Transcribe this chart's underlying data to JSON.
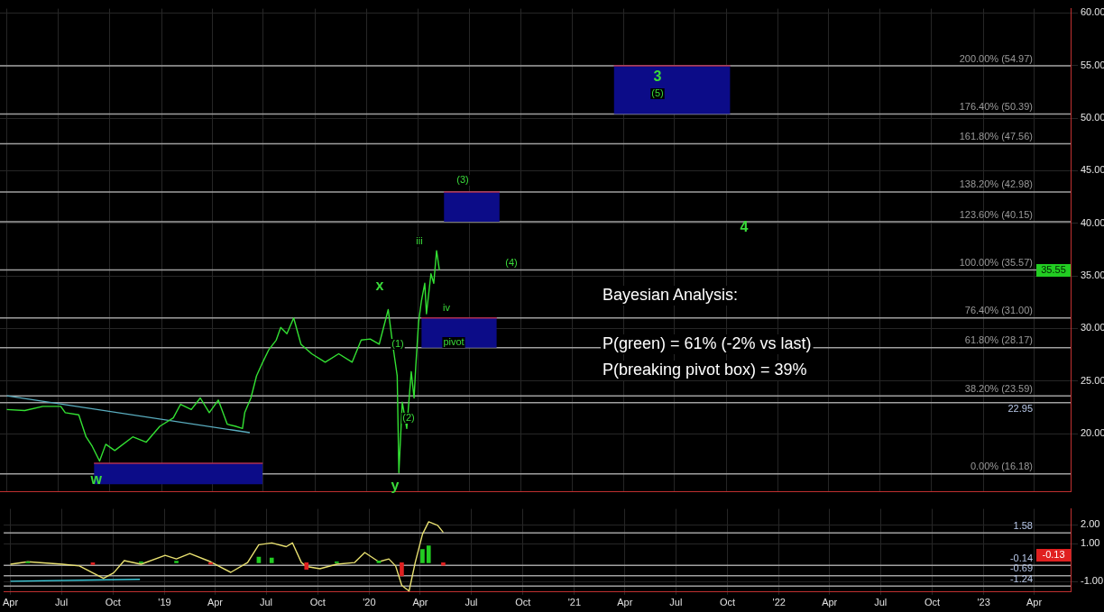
{
  "chart_data": [
    {
      "type": "line",
      "xlim": [
        "2018-03-20",
        "2023-06-05"
      ],
      "xticks": [
        {
          "value": "2018-04-01",
          "label": null
        },
        {
          "value": "2018-07-01",
          "label": null
        },
        {
          "value": "2018-10-01",
          "label": null
        },
        {
          "value": "2019-01-01",
          "label": null
        },
        {
          "value": "2019-04-01",
          "label": null
        },
        {
          "value": "2019-07-01",
          "label": null
        },
        {
          "value": "2019-10-01",
          "label": null
        },
        {
          "value": "2020-01-01",
          "label": null
        },
        {
          "value": "2020-04-01",
          "label": null
        },
        {
          "value": "2020-07-01",
          "label": null
        },
        {
          "value": "2020-10-01",
          "label": null
        },
        {
          "value": "2021-01-01",
          "label": null
        },
        {
          "value": "2021-04-01",
          "label": null
        },
        {
          "value": "2021-07-01",
          "label": null
        },
        {
          "value": "2021-10-01",
          "label": null
        },
        {
          "value": "2022-01-01",
          "label": null
        },
        {
          "value": "2022-04-01",
          "label": null
        },
        {
          "value": "2022-07-01",
          "label": null
        },
        {
          "value": "2022-10-01",
          "label": null
        },
        {
          "value": "2023-01-01",
          "label": null
        },
        {
          "value": "2023-04-01",
          "label": null
        }
      ],
      "ylim": [
        14.5,
        60.4
      ],
      "yticks": [
        {
          "value": 20,
          "label": "20.00"
        },
        {
          "value": 25,
          "label": "25.00"
        },
        {
          "value": 30,
          "label": "30.00"
        },
        {
          "value": 35,
          "label": "35.00"
        },
        {
          "value": 40,
          "label": "40.00"
        },
        {
          "value": 45,
          "label": "45.00"
        },
        {
          "value": 50,
          "label": "50.00"
        },
        {
          "value": 55,
          "label": "55.00"
        },
        {
          "value": 60,
          "label": "60.00"
        }
      ],
      "grid": true,
      "tick_labels": "y",
      "series": [
        {
          "color": "#33e033",
          "x": [
            "2018-04-01",
            "2018-05-03",
            "2018-06-04",
            "2018-07-06",
            "2018-07-14",
            "2018-08-07",
            "2018-08-20",
            "2018-08-31",
            "2018-09-13",
            "2018-09-24",
            "2018-10-10",
            "2018-11-11",
            "2018-12-05",
            "2018-12-29",
            "2019-01-22",
            "2019-02-04",
            "2019-02-23",
            "2019-03-11",
            "2019-03-27",
            "2019-04-12",
            "2019-04-28",
            "2019-05-13",
            "2019-05-25",
            "2019-05-29",
            "2019-06-09",
            "2019-06-19",
            "2019-06-30",
            "2019-07-11",
            "2019-07-24",
            "2019-08-01",
            "2019-08-12",
            "2019-08-24",
            "2019-09-06",
            "2019-09-25",
            "2019-10-19",
            "2019-11-12",
            "2019-12-06",
            "2019-12-22",
            "2020-01-07",
            "2020-01-23",
            "2020-02-08",
            "2020-02-16",
            "2020-02-24",
            "2020-02-27",
            "2020-03-04",
            "2020-03-12",
            "2020-03-20",
            "2020-03-25",
            "2020-03-28",
            "2020-04-02",
            "2020-04-07",
            "2020-04-13",
            "2020-04-16",
            "2020-04-24",
            "2020-04-29",
            "2020-05-04",
            "2020-05-09"
          ],
          "values": [
            22.3,
            22.2,
            22.6,
            22.6,
            22.0,
            21.8,
            19.7,
            18.8,
            17.4,
            19.0,
            18.4,
            19.7,
            19.2,
            20.7,
            21.5,
            22.8,
            22.3,
            23.4,
            22.0,
            23.2,
            20.9,
            20.7,
            20.5,
            22.0,
            23.4,
            25.5,
            26.8,
            28.0,
            28.9,
            30.1,
            29.5,
            31.0,
            28.5,
            27.6,
            26.8,
            27.6,
            26.8,
            28.9,
            29.0,
            28.5,
            31.8,
            28.5,
            25.5,
            16.3,
            23.0,
            20.5,
            25.9,
            23.4,
            26.4,
            30.6,
            32.6,
            34.3,
            31.4,
            35.2,
            34.3,
            37.4,
            35.55
          ],
          "marker": "none"
        },
        {
          "color": "#5aaec0",
          "x": [
            "2018-04-01",
            "2019-06-07"
          ],
          "values": [
            23.6,
            20.1
          ]
        },
        {
          "color": "#b03050",
          "x": [
            "2018-09-03",
            "2019-06-30"
          ],
          "values": [
            17.2,
            17.2
          ],
          "lower": [
            15.2,
            15.2
          ],
          "upper": [
            17.2,
            17.2
          ]
        },
        {
          "color": "#b03050",
          "x": [
            "2020-04-07",
            "2020-08-19"
          ],
          "values": [
            31.0,
            31.0
          ],
          "lower": [
            28.17,
            28.17
          ],
          "upper": [
            31.0,
            31.0
          ]
        },
        {
          "color": "#b03050",
          "x": [
            "2020-05-17",
            "2020-08-24"
          ],
          "values": [
            42.98,
            42.98
          ],
          "lower": [
            40.15,
            40.15
          ],
          "upper": [
            42.98,
            42.98
          ]
        },
        {
          "color": "#b03050",
          "x": [
            "2021-03-15",
            "2021-10-08"
          ],
          "values": [
            54.97,
            54.97
          ],
          "lower": [
            50.39,
            50.39
          ],
          "upper": [
            54.97,
            54.97
          ]
        }
      ],
      "ref_lines": [
        {
          "axis": "y",
          "value": 54.97,
          "label": "200.00% (54.97)"
        },
        {
          "axis": "y",
          "value": 50.39,
          "label": "176.40% (50.39)"
        },
        {
          "axis": "y",
          "value": 47.56,
          "label": "161.80% (47.56)"
        },
        {
          "axis": "y",
          "value": 42.98,
          "label": "138.20% (42.98)"
        },
        {
          "axis": "y",
          "value": 40.15,
          "label": "123.60% (40.15)"
        },
        {
          "axis": "y",
          "value": 35.57,
          "label": "100.00% (35.57)"
        },
        {
          "axis": "y",
          "value": 31.0,
          "label": "76.40% (31.00)"
        },
        {
          "axis": "y",
          "value": 28.17,
          "label": "61.80% (28.17)"
        },
        {
          "axis": "y",
          "value": 23.59,
          "label": "38.20% (23.59)"
        },
        {
          "axis": "y",
          "value": 22.95,
          "label": "22.95"
        },
        {
          "axis": "y",
          "value": 16.18,
          "label": "0.00% (16.18)"
        }
      ],
      "annotations": [
        "Bayesian Analysis:",
        "P(green) = 61% (-2% vs last)",
        "P(breaking pivot box) = 39%",
        {
          "text": "w",
          "x": "2018-09-07",
          "y": 15.6
        },
        "x",
        "y",
        "(1)",
        "(2)",
        "iii",
        "iv",
        "pivot",
        "(3)",
        "(4)",
        "3",
        "(5)",
        "4",
        "35.55"
      ]
    },
    {
      "type": "line",
      "xlim": [
        "2018-03-20",
        "2023-06-05"
      ],
      "xticks": [
        {
          "value": "2018-04-01",
          "label": "Apr"
        },
        {
          "value": "2018-07-01",
          "label": "Jul"
        },
        {
          "value": "2018-10-01",
          "label": "Oct"
        },
        {
          "value": "2019-01-01",
          "label": "'19"
        },
        {
          "value": "2019-04-01",
          "label": "Apr"
        },
        {
          "value": "2019-07-01",
          "label": "Jul"
        },
        {
          "value": "2019-10-01",
          "label": "Oct"
        },
        {
          "value": "2020-01-01",
          "label": "'20"
        },
        {
          "value": "2020-04-01",
          "label": "Apr"
        },
        {
          "value": "2020-07-01",
          "label": "Jul"
        },
        {
          "value": "2020-10-01",
          "label": "Oct"
        },
        {
          "value": "2021-01-01",
          "label": "'21"
        },
        {
          "value": "2021-04-01",
          "label": "Apr"
        },
        {
          "value": "2021-07-01",
          "label": "Jul"
        },
        {
          "value": "2021-10-01",
          "label": "Oct"
        },
        {
          "value": "2022-01-01",
          "label": "'22"
        },
        {
          "value": "2022-04-01",
          "label": "Apr"
        },
        {
          "value": "2022-07-01",
          "label": "Jul"
        },
        {
          "value": "2022-10-01",
          "label": "Oct"
        },
        {
          "value": "2023-01-01",
          "label": "'23"
        },
        {
          "value": "2023-04-01",
          "label": "Apr"
        }
      ],
      "ylim": [
        -1.55,
        2.85
      ],
      "yticks": [
        {
          "value": -1,
          "label": "-1.00"
        },
        {
          "value": 1,
          "label": "1.00"
        },
        {
          "value": 2,
          "label": "2.00"
        }
      ],
      "grid": true,
      "series": [
        {
          "type": "bar",
          "x": [
            "2018-05-02",
            "2018-08-26",
            "2018-11-20",
            "2019-01-22",
            "2019-03-24",
            "2019-06-18",
            "2019-07-11",
            "2019-09-11",
            "2019-11-04",
            "2020-01-18",
            "2020-02-28",
            "2020-04-05",
            "2020-04-16",
            "2020-05-12"
          ],
          "values": [
            0.05,
            -0.1,
            0.05,
            0.08,
            -0.08,
            0.3,
            0.25,
            -0.35,
            0.05,
            0.1,
            -0.7,
            0.7,
            0.9,
            -0.13
          ],
          "colors": [
            "#22cc22",
            "#e02020",
            "#22cc22",
            "#22cc22",
            "#e02020",
            "#22cc22",
            "#22cc22",
            "#e02020",
            "#22cc22",
            "#22cc22",
            "#e02020",
            "#22cc22",
            "#22cc22",
            "#e02020"
          ]
        },
        {
          "color": "#e8e070",
          "x": [
            "2018-04-01",
            "2018-05-02",
            "2018-07-03",
            "2018-08-02",
            "2018-08-26",
            "2018-09-14",
            "2018-10-02",
            "2018-10-21",
            "2018-11-20",
            "2019-01-02",
            "2019-01-22",
            "2019-02-15",
            "2019-03-24",
            "2019-04-29",
            "2019-05-29",
            "2019-06-18",
            "2019-07-11",
            "2019-08-06",
            "2019-08-17",
            "2019-09-02",
            "2019-09-11",
            "2019-10-05",
            "2019-11-04",
            "2019-12-06",
            "2019-12-24",
            "2020-01-18",
            "2020-02-05",
            "2020-02-17",
            "2020-02-28",
            "2020-03-12",
            "2020-03-23",
            "2020-04-05",
            "2020-04-16",
            "2020-05-02",
            "2020-05-12"
          ],
          "values": [
            -0.08,
            0.05,
            -0.08,
            -0.17,
            -0.54,
            -0.83,
            -0.54,
            0.11,
            -0.08,
            0.39,
            0.2,
            0.49,
            0.05,
            -0.51,
            0.01,
            0.95,
            1.05,
            0.85,
            1.05,
            0.01,
            -0.2,
            -0.32,
            -0.08,
            0.01,
            0.54,
            0.05,
            0.2,
            -0.17,
            -1.2,
            -1.5,
            0.01,
            1.51,
            2.17,
            1.98,
            1.61
          ]
        },
        {
          "color": "#40d0e0",
          "x": [
            "2018-04-01",
            "2018-11-18"
          ],
          "values": [
            -0.98,
            -0.88
          ]
        }
      ],
      "ref_lines": [
        {
          "axis": "y",
          "value": 1.58,
          "label": "1.58"
        },
        {
          "axis": "y",
          "value": -0.14,
          "label": "-0.14"
        },
        {
          "axis": "y",
          "value": -0.69,
          "label": "-0.69"
        },
        {
          "axis": "y",
          "value": -1.24,
          "label": "-1.24"
        }
      ],
      "annotations": [
        "-0.13"
      ]
    }
  ]
}
